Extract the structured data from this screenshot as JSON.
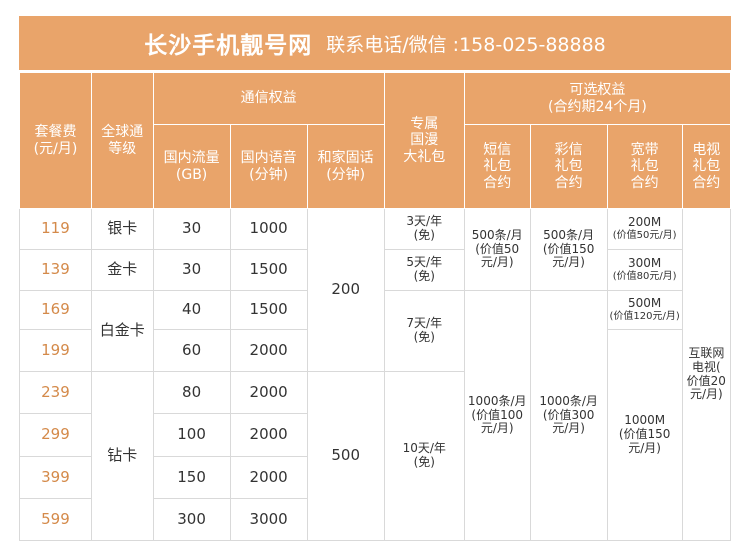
{
  "title": {
    "main": "长沙手机靓号网",
    "contact": "联系电话/微信 :158-025-88888"
  },
  "headers": {
    "price": "套餐费\n(元/月)",
    "level": "全球通\n等级",
    "comm_group": "通信权益",
    "data": "国内流量\n(GB)",
    "voice": "国内语音\n(分钟)",
    "home": "和家固话\n(分钟)",
    "roaming": "专属\n国漫\n大礼包",
    "optional_group": "可选权益\n(合约期24个月)",
    "sms": "短信\n礼包\n合约",
    "mms": "彩信\n礼包\n合约",
    "broadband": "宽带\n礼包\n合约",
    "tv": "电视\n礼包\n合约"
  },
  "rows": [
    {
      "price": "119",
      "data": "30",
      "voice": "1000"
    },
    {
      "price": "139",
      "data": "30",
      "voice": "1500"
    },
    {
      "price": "169",
      "data": "40",
      "voice": "1500"
    },
    {
      "price": "199",
      "data": "60",
      "voice": "2000"
    },
    {
      "price": "239",
      "data": "80",
      "voice": "2000"
    },
    {
      "price": "299",
      "data": "100",
      "voice": "2000"
    },
    {
      "price": "399",
      "data": "150",
      "voice": "2000"
    },
    {
      "price": "599",
      "data": "300",
      "voice": "3000"
    }
  ],
  "levels": {
    "silver": "银卡",
    "gold": "金卡",
    "platinum": "白金卡",
    "diamond": "钻卡"
  },
  "home_minutes": {
    "low": "200",
    "high": "500"
  },
  "roaming": {
    "r1": "3天/年\n(免)",
    "r2": "5天/年\n(免)",
    "r3": "7天/年\n(免)",
    "r4": "10天/年\n(免)"
  },
  "sms": {
    "low": "500条/月\n(价值50\n元/月)",
    "high": "1000条/月\n(价值100\n元/月)"
  },
  "mms": {
    "low": "500条/月\n(价值150\n元/月)",
    "high": "1000条/月\n(价值300\n元/月)"
  },
  "broadband": {
    "b1_speed": "200M",
    "b1_value": "(价值50元/月)",
    "b2_speed": "300M",
    "b2_value": "(价值80元/月)",
    "b3_speed": "500M",
    "b3_value": "(价值120元/月)",
    "b4": "1000M\n(价值150\n元/月)"
  },
  "tv": {
    "all": "互联网\n电视(\n价值20\n元/月)"
  },
  "colors": {
    "header_bg": "#e9a46a",
    "price_text": "#d48a4a",
    "border": "#d9d9d9"
  }
}
